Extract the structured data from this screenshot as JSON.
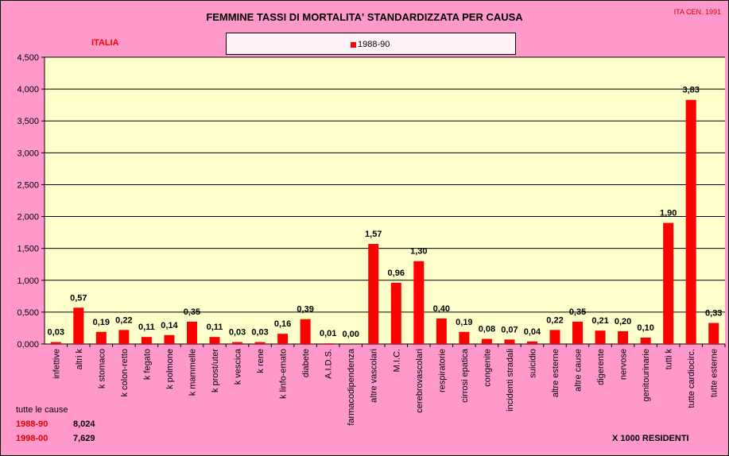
{
  "header": {
    "title": "FEMMINE TASSI DI MORTALITA' STANDARDIZZATA PER CAUSA",
    "corner_note": "ITA CEN. 1991",
    "region": "ITALIA"
  },
  "legend": {
    "label": "1988-90",
    "color": "#ff0000"
  },
  "colors": {
    "background": "#ff99cc",
    "plot_area": "#ffffcc",
    "bar": "#ff0000"
  },
  "chart_data": {
    "type": "bar",
    "categories": [
      "infettive",
      "altri k",
      "k stomaco",
      "k colon-retto",
      "k fegato",
      "k polmone",
      "k mammelle",
      "k prost/uter",
      "k vescica",
      "k rene",
      "k linfo-emato",
      "diabete",
      "A.I.D.S.",
      "farmacodipendenza",
      "altre vascolari",
      "M.I.C.",
      "cerebrovascolari",
      "respiratorie",
      "cirrosi epatica",
      "congenite",
      "incidenti stradali",
      "suicidio",
      "altre esterne",
      "altre cause",
      "digerente",
      "nervose",
      "genitourinarie",
      "tutti k",
      "tutte cardiocirc.",
      "tutte esterne"
    ],
    "series": [
      {
        "name": "1988-90",
        "values": [
          0.03,
          0.57,
          0.19,
          0.22,
          0.11,
          0.14,
          0.35,
          0.11,
          0.03,
          0.03,
          0.16,
          0.39,
          0.01,
          0.0,
          1.57,
          0.96,
          1.3,
          0.4,
          0.19,
          0.08,
          0.07,
          0.04,
          0.22,
          0.35,
          0.21,
          0.2,
          0.1,
          1.9,
          3.83,
          0.33
        ],
        "labels": [
          "0,03",
          "0,57",
          "0,19",
          "0,22",
          "0,11",
          "0,14",
          "0,35",
          "0,11",
          "0,03",
          "0,03",
          "0,16",
          "0,39",
          "0,01",
          "0,00",
          "1,57",
          "0,96",
          "1,30",
          "0,40",
          "0,19",
          "0,08",
          "0,07",
          "0,04",
          "0,22",
          "0,35",
          "0,21",
          "0,20",
          "0,10",
          "1,90",
          "3,83",
          "0,33"
        ]
      }
    ],
    "ylim": [
      0,
      4.5
    ],
    "yticks": [
      0,
      0.5,
      1,
      1.5,
      2,
      2.5,
      3,
      3.5,
      4,
      4.5
    ],
    "ytick_labels": [
      "0,000",
      "0,500",
      "1,000",
      "1,500",
      "2,000",
      "2,500",
      "3,000",
      "3,500",
      "4,000",
      "4,500"
    ],
    "grid": true
  },
  "footer": {
    "caption": "tutte le cause",
    "rows": [
      {
        "label": "1988-90",
        "value": "8,024"
      },
      {
        "label": "1998-00",
        "value": "7,629"
      }
    ],
    "note": "X 1000 RESIDENTI"
  }
}
